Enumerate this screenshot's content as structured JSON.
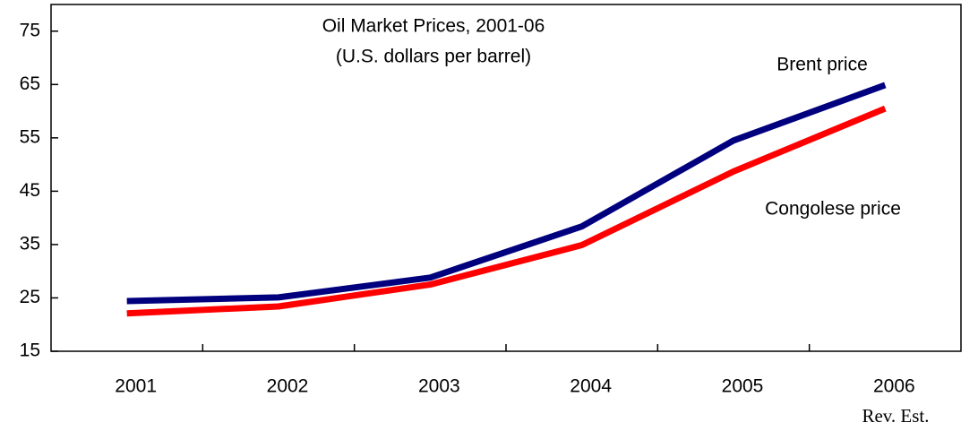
{
  "chart_data": {
    "type": "line",
    "title": "Oil Market Prices, 2001-06",
    "subtitle": "(U.S. dollars per barrel)",
    "categories": [
      "2001",
      "2002",
      "2003",
      "2004",
      "2005",
      "2006"
    ],
    "annotation": "Rev. Est.",
    "series": [
      {
        "name": "Brent price",
        "color": "#00007f",
        "values": [
          24.4,
          25.1,
          28.8,
          38.4,
          54.5,
          64.9
        ]
      },
      {
        "name": "Congolese price",
        "color": "#ff0000",
        "values": [
          22.1,
          23.4,
          27.5,
          34.9,
          48.7,
          60.5
        ]
      }
    ],
    "ylim": [
      15,
      80
    ],
    "yticks": [
      15,
      25,
      35,
      45,
      55,
      65,
      75
    ],
    "grid": false
  }
}
